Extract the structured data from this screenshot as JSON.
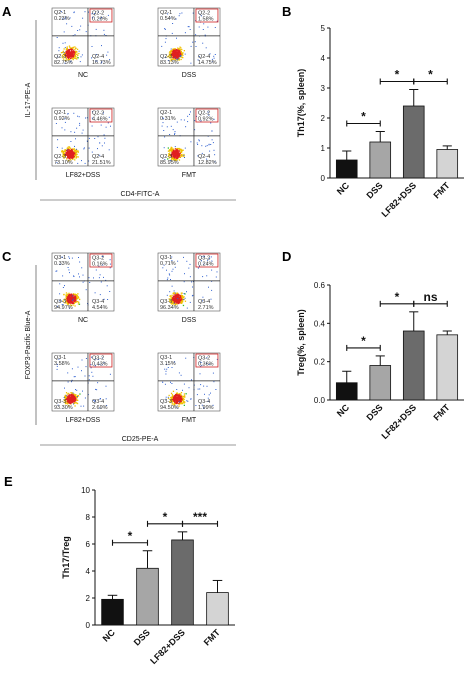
{
  "panels": {
    "A": {
      "letter": "A",
      "y_axis_label": "IL-17-PE-A",
      "x_axis_label": "CD4-FITC-A",
      "plots": [
        {
          "condition": "NC",
          "quadrants": {
            "tl_label": "Q2-1",
            "tl": "0.23%",
            "tr_label": "Q2-2",
            "tr": "0.29%",
            "bl_label": "Q2-3",
            "bl": "82.75%",
            "br_label": "Q2-4",
            "br": "16.73%"
          }
        },
        {
          "condition": "DSS",
          "quadrants": {
            "tl_label": "Q2-1",
            "tl": "0.54%",
            "tr_label": "Q2-2",
            "tr": "1.58%",
            "bl_label": "Q2-3",
            "bl": "83.13%",
            "br_label": "Q2-4",
            "br": "14.75%"
          }
        },
        {
          "condition": "LF82+DSS",
          "quadrants": {
            "tl_label": "Q2-1",
            "tl": "0.92%",
            "tr_label": "Q2-2",
            "tr": "4.46%",
            "bl_label": "Q2-3",
            "bl": "73.10%",
            "br_label": "Q2-4",
            "br": "21.51%"
          }
        },
        {
          "condition": "FMT",
          "quadrants": {
            "tl_label": "Q2-1",
            "tl": "0.31%",
            "tr_label": "Q2-2",
            "tr": "0.92%",
            "bl_label": "Q2-3",
            "bl": "85.95%",
            "br_label": "Q2-4",
            "br": "12.82%"
          }
        }
      ]
    },
    "C": {
      "letter": "C",
      "y_axis_label": "FOXP3-Pacific Blue-A",
      "x_axis_label": "CD25-PE-A",
      "plots": [
        {
          "condition": "NC",
          "quadrants": {
            "tl_label": "Q3-1",
            "tl": "0.33%",
            "tr_label": "Q3-2",
            "tr": "0.16%",
            "bl_label": "Q3-3",
            "bl": "94.97%",
            "br_label": "Q3-4",
            "br": "4.54%"
          }
        },
        {
          "condition": "DSS",
          "quadrants": {
            "tl_label": "Q3-1",
            "tl": "0.71%",
            "tr_label": "Q3-2",
            "tr": "0.24%",
            "bl_label": "Q3-3",
            "bl": "96.34%",
            "br_label": "Q3-4",
            "br": "2.71%"
          }
        },
        {
          "condition": "LF82+DSS",
          "quadrants": {
            "tl_label": "Q3-1",
            "tl": "3.58%",
            "tr_label": "Q3-2",
            "tr": "0.43%",
            "bl_label": "Q3-3",
            "bl": "93.30%",
            "br_label": "Q3-4",
            "br": "2.69%"
          }
        },
        {
          "condition": "FMT",
          "quadrants": {
            "tl_label": "Q3-1",
            "tl": "3.15%",
            "tr_label": "Q3-2",
            "tr": "0.36%",
            "bl_label": "Q3-3",
            "bl": "94.50%",
            "br_label": "Q3-4",
            "br": "1.99%"
          }
        }
      ]
    }
  },
  "chart_data": [
    {
      "panel": "B",
      "type": "bar",
      "categories": [
        "NC",
        "DSS",
        "LF82+DSS",
        "FMT"
      ],
      "values": [
        0.6,
        1.2,
        2.4,
        0.95
      ],
      "errors": [
        0.3,
        0.35,
        0.55,
        0.12
      ],
      "ylabel": "Th17(%, spleen)",
      "ylim": [
        0,
        5
      ],
      "yticks": [
        "0",
        "1",
        "2",
        "3",
        "4",
        "5"
      ],
      "bar_colors": [
        "#111111",
        "#a6a6a6",
        "#6b6b6b",
        "#d4d4d4"
      ],
      "significance": [
        {
          "from": 0,
          "to": 1,
          "label": "*"
        },
        {
          "from": 1,
          "to": 2,
          "label": "*"
        },
        {
          "from": 2,
          "to": 3,
          "label": "*"
        }
      ]
    },
    {
      "panel": "D",
      "type": "bar",
      "categories": [
        "NC",
        "DSS",
        "LF82+DSS",
        "FMT"
      ],
      "values": [
        0.09,
        0.18,
        0.36,
        0.34
      ],
      "errors": [
        0.06,
        0.05,
        0.1,
        0.02
      ],
      "ylabel": "Treg(%, spleen)",
      "ylim": [
        0,
        0.6
      ],
      "yticks": [
        "0.0",
        "0.2",
        "0.4",
        "0.6"
      ],
      "bar_colors": [
        "#111111",
        "#a6a6a6",
        "#6b6b6b",
        "#d4d4d4"
      ],
      "significance": [
        {
          "from": 0,
          "to": 1,
          "label": "*"
        },
        {
          "from": 1,
          "to": 2,
          "label": "*"
        },
        {
          "from": 2,
          "to": 3,
          "label": "ns"
        }
      ]
    },
    {
      "panel": "E",
      "type": "bar",
      "categories": [
        "NC",
        "DSS",
        "LF82+DSS",
        "FMT"
      ],
      "values": [
        1.9,
        4.2,
        6.3,
        2.4
      ],
      "errors": [
        0.3,
        1.3,
        0.6,
        0.9
      ],
      "ylabel": "Th17/Treg",
      "ylim": [
        0,
        10
      ],
      "yticks": [
        "0",
        "2",
        "4",
        "6",
        "8",
        "10"
      ],
      "bar_colors": [
        "#111111",
        "#a6a6a6",
        "#6b6b6b",
        "#d4d4d4"
      ],
      "significance": [
        {
          "from": 0,
          "to": 1,
          "label": "*"
        },
        {
          "from": 1,
          "to": 2,
          "label": "*"
        },
        {
          "from": 2,
          "to": 3,
          "label": "***"
        }
      ]
    }
  ],
  "letters": {
    "B": "B",
    "D": "D",
    "E": "E"
  }
}
